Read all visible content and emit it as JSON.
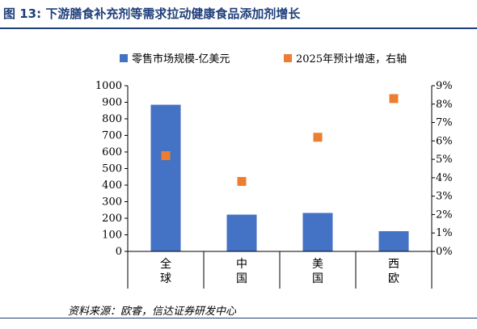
{
  "figure": {
    "title": "图 13:  下游膳食补充剂等需求拉动健康食品添加剂增长",
    "source": "资料来源：欧睿，信达证券研发中心"
  },
  "colors": {
    "bar": "#4472c4",
    "marker": "#ed7d31",
    "title": "#1f3f7a"
  },
  "chart_data": {
    "type": "bar",
    "categories": [
      "全球",
      "中国",
      "美国",
      "西欧"
    ],
    "series": [
      {
        "name": "零售市场规模-亿美元",
        "type": "bar",
        "axis": "left",
        "values": [
          885,
          222,
          232,
          122
        ]
      },
      {
        "name": "2025年预计增速，右轴",
        "type": "scatter",
        "axis": "right",
        "values": [
          5.2,
          3.8,
          6.2,
          8.3
        ]
      }
    ],
    "y_left": {
      "ylim": [
        0,
        1000
      ],
      "ticks": [
        "0",
        "100",
        "200",
        "300",
        "400",
        "500",
        "600",
        "700",
        "800",
        "900",
        "1000"
      ]
    },
    "y_right": {
      "ylim": [
        0,
        9
      ],
      "ticks": [
        "0%",
        "1%",
        "2%",
        "3%",
        "4%",
        "5%",
        "6%",
        "7%",
        "8%",
        "9%"
      ]
    },
    "legend_position": "top",
    "grid": false
  }
}
